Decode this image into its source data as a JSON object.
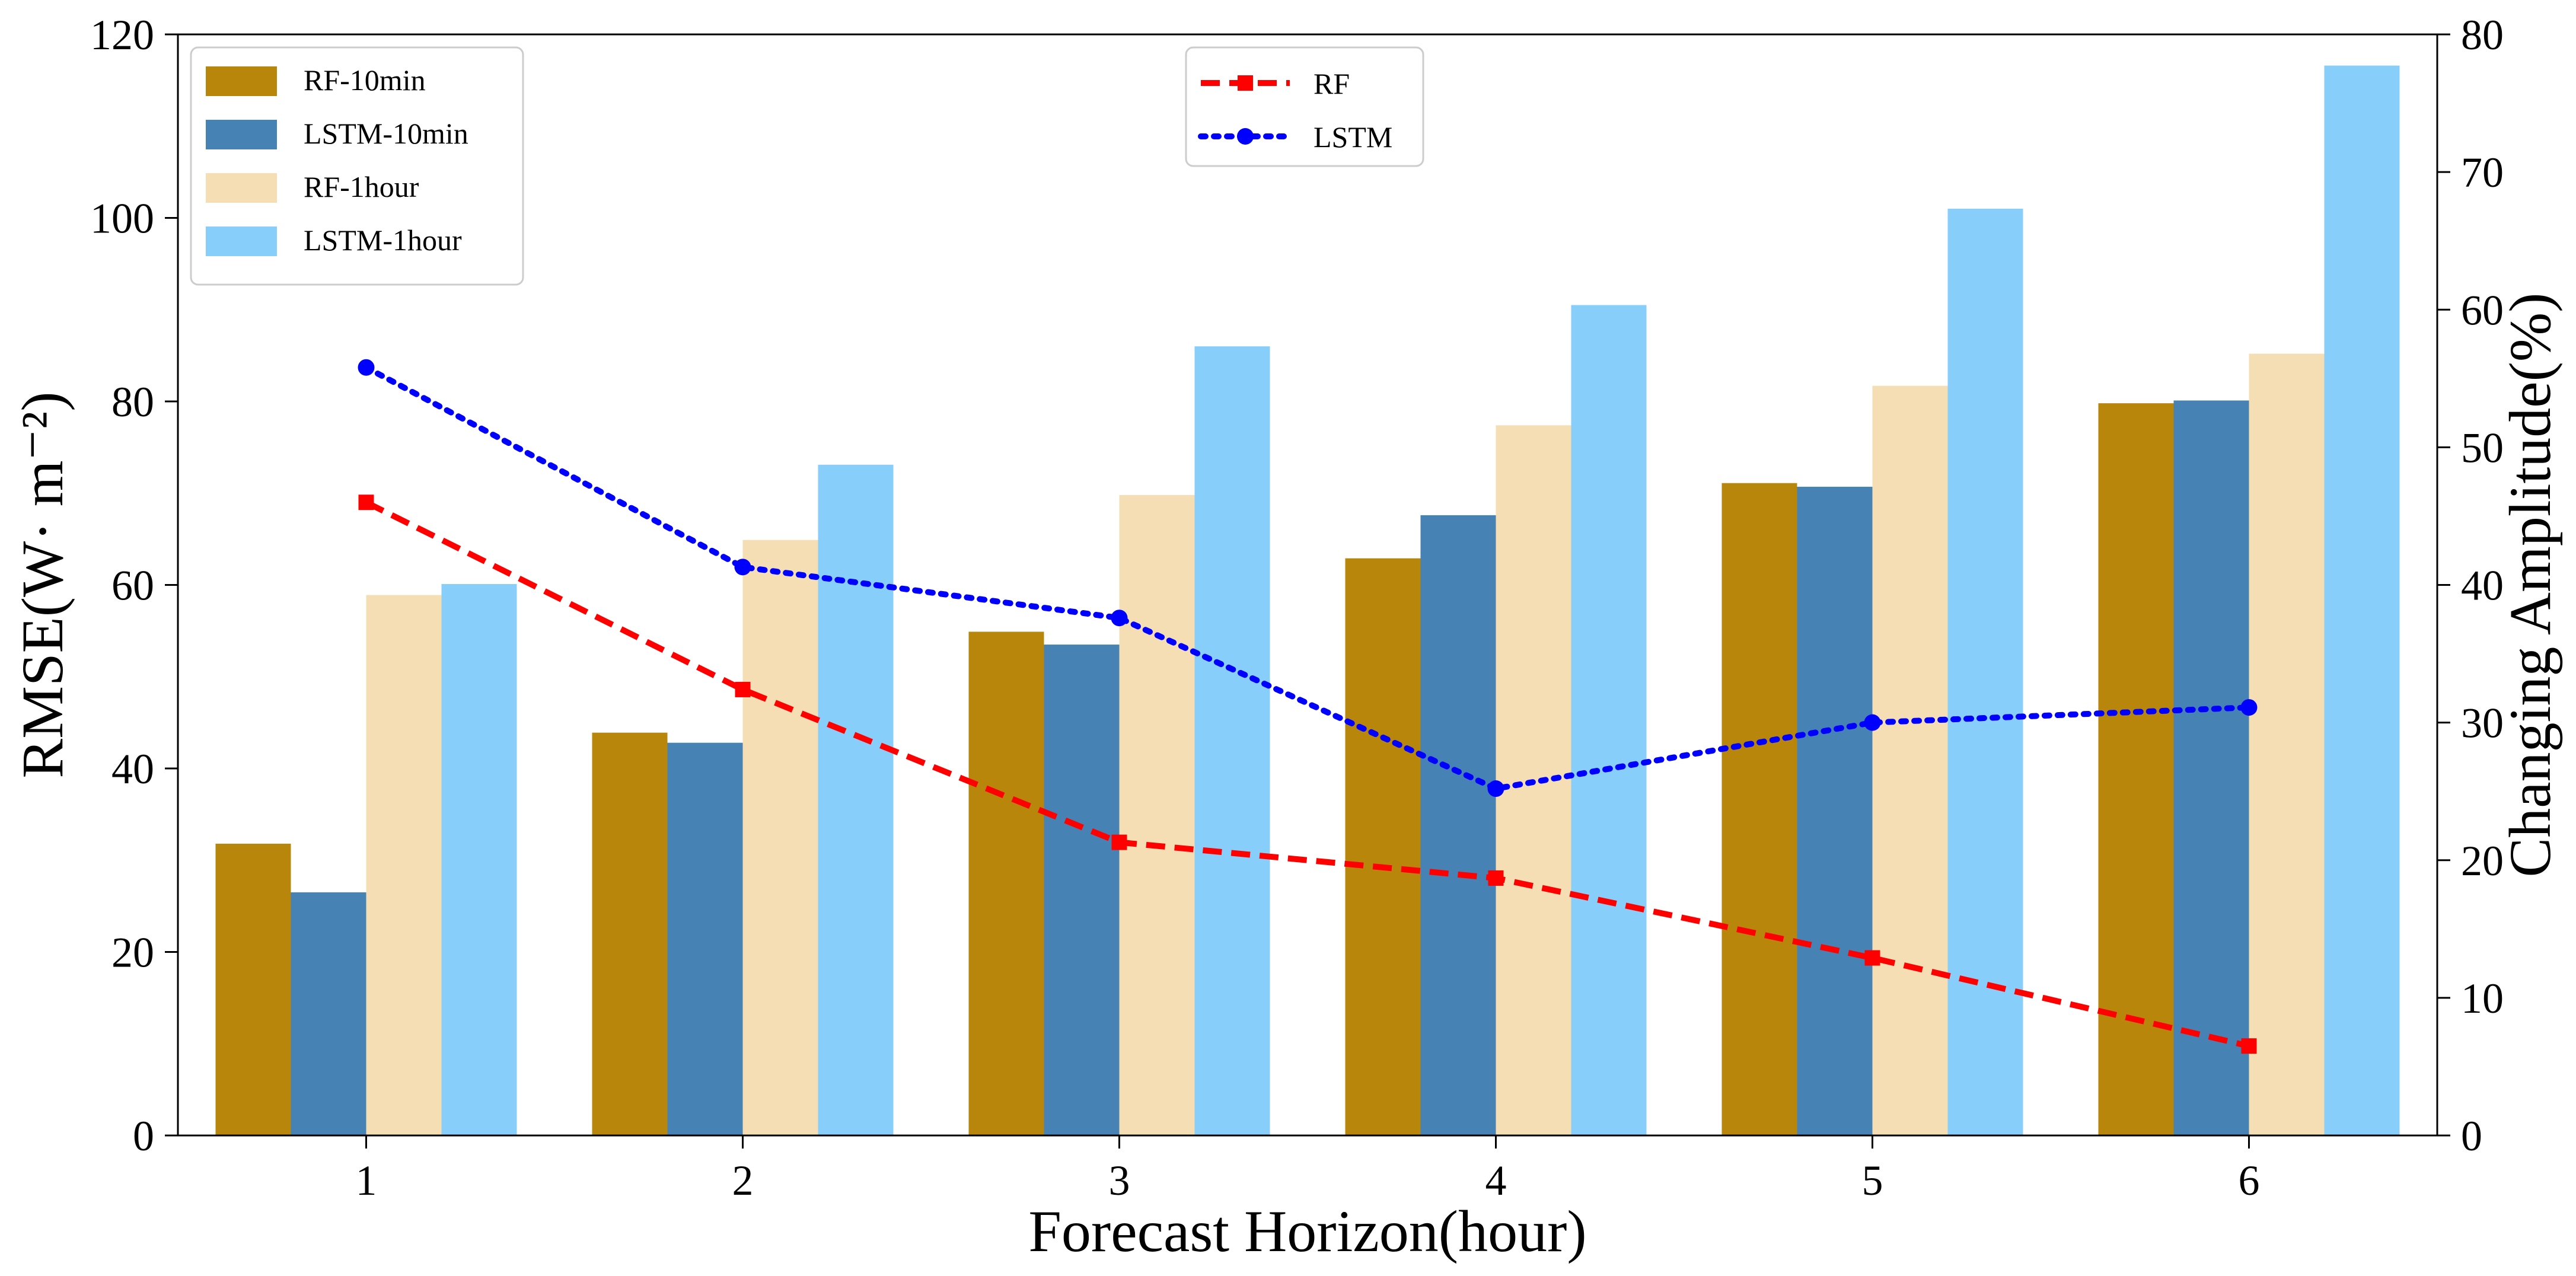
{
  "chart_data": {
    "type": "bar",
    "categories": [
      "1",
      "2",
      "3",
      "4",
      "5",
      "6"
    ],
    "xlabel": "Forecast Horizon(hour)",
    "ylabel": "RMSE(W· m⁻²)",
    "y2label": "Changing Amplitude(%)",
    "ylim": [
      0,
      120
    ],
    "y2lim": [
      0,
      80
    ],
    "yticks": [
      "0",
      "20",
      "40",
      "60",
      "80",
      "100",
      "120"
    ],
    "y2ticks": [
      "0",
      "10",
      "20",
      "30",
      "40",
      "50",
      "60",
      "70",
      "80"
    ],
    "series": [
      {
        "name": "RF-10min",
        "color": "#B8860B",
        "values": [
          31.8,
          43.9,
          54.9,
          62.9,
          71.1,
          79.8
        ]
      },
      {
        "name": "LSTM-10min",
        "color": "#4682B4",
        "values": [
          26.5,
          42.8,
          53.5,
          67.6,
          70.7,
          80.1
        ]
      },
      {
        "name": "RF-1hour",
        "color": "#F5DEB3",
        "values": [
          58.9,
          64.9,
          69.8,
          77.4,
          81.7,
          85.2
        ]
      },
      {
        "name": "LSTM-1hour",
        "color": "#87CEFA",
        "values": [
          60.1,
          73.1,
          86.0,
          90.5,
          101.0,
          116.6
        ]
      }
    ],
    "line_series": [
      {
        "name": "RF",
        "color": "#FF0000",
        "style": "dashed",
        "marker": "square",
        "axis": "right",
        "values": [
          46.0,
          32.4,
          21.3,
          18.7,
          12.9,
          6.5
        ]
      },
      {
        "name": "LSTM",
        "color": "#0000FF",
        "style": "dotted",
        "marker": "circle",
        "axis": "right",
        "values": [
          55.8,
          41.3,
          37.6,
          25.2,
          30.0,
          31.1
        ]
      }
    ],
    "legend_bars": "top-left",
    "legend_lines": "top-center",
    "grid": false
  }
}
